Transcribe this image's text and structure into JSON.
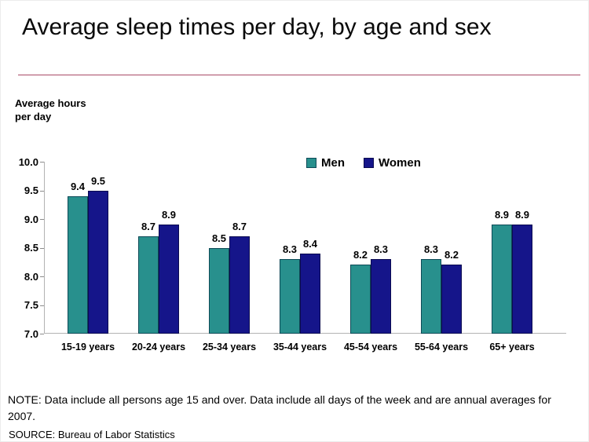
{
  "header": {
    "title": "Average sleep times per day, by age and sex",
    "accent_color": "#7d2044"
  },
  "axis_title": {
    "line1": "Average hours",
    "line2": "per day"
  },
  "chart_data": {
    "type": "bar",
    "title": "Average sleep times per day, by age and sex",
    "xlabel": "",
    "ylabel": "Average hours per day",
    "categories": [
      "15-19 years",
      "20-24 years",
      "25-34 years",
      "35-44 years",
      "45-54 years",
      "55-64 years",
      "65+ years"
    ],
    "series": [
      {
        "name": "Men",
        "color": "#28908d",
        "border_color": "#0e4a57",
        "values": [
          9.4,
          8.7,
          8.5,
          8.3,
          8.2,
          8.3,
          8.9
        ]
      },
      {
        "name": "Women",
        "color": "#15158a",
        "border_color": "#0a0a50",
        "values": [
          9.5,
          8.9,
          8.7,
          8.4,
          8.3,
          8.2,
          8.9
        ]
      }
    ],
    "ylim": [
      7.0,
      10.0
    ],
    "ytick_step": 0.5,
    "ytick_labels": [
      "10.0",
      "9.5",
      "9.0",
      "8.5",
      "8.0",
      "7.5",
      "7.0"
    ],
    "grid": false,
    "legend_position": "top-center",
    "value_labels_shown": true
  },
  "notes": {
    "note": "NOTE: Data include all persons age 15 and over. Data include all days of the week and are annual averages for 2007.",
    "source": "SOURCE: Bureau of Labor Statistics"
  }
}
